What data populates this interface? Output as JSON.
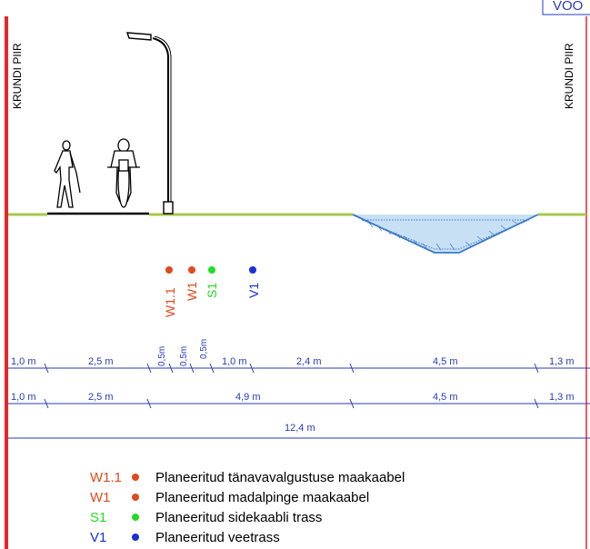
{
  "header_tag": "VOO",
  "boundary_labels": {
    "left": "KRUNDI PIIR",
    "right": "KRUNDI PIIR"
  },
  "utilities": [
    {
      "code": "W1.1",
      "color": "#e04a1c"
    },
    {
      "code": "W1",
      "color": "#e04a1c"
    },
    {
      "code": "S1",
      "color": "#22dd22"
    },
    {
      "code": "V1",
      "color": "#1a2fd6"
    }
  ],
  "dimension_rows": [
    [
      "1,0 m",
      "2,5 m",
      "0,5m",
      "0,5m",
      "0,5m",
      "1,0 m",
      "2,4 m",
      "4,5 m",
      "1,3 m"
    ],
    [
      "1,0 m",
      "2,5 m",
      "4,9 m",
      "4,5 m",
      "1,3 m"
    ],
    [
      "12,4 m"
    ]
  ],
  "legend": [
    {
      "code": "W1.1",
      "text": "Planeeritud tänavavalgustuse maakaabel",
      "color": "#e04a1c"
    },
    {
      "code": "W1",
      "text": "Planeeritud madalpinge maakaabel",
      "color": "#e04a1c"
    },
    {
      "code": "S1",
      "text": "Planeeritud sidekaabli trass",
      "color": "#22dd22"
    },
    {
      "code": "V1",
      "text": "Planeeritud veetrass",
      "color": "#1a2fd6"
    }
  ],
  "colors": {
    "boundary": "#e8262a",
    "dimension": "#2a3ab8",
    "ground": "#a8c84a",
    "ditch": "#3a7ac8"
  }
}
